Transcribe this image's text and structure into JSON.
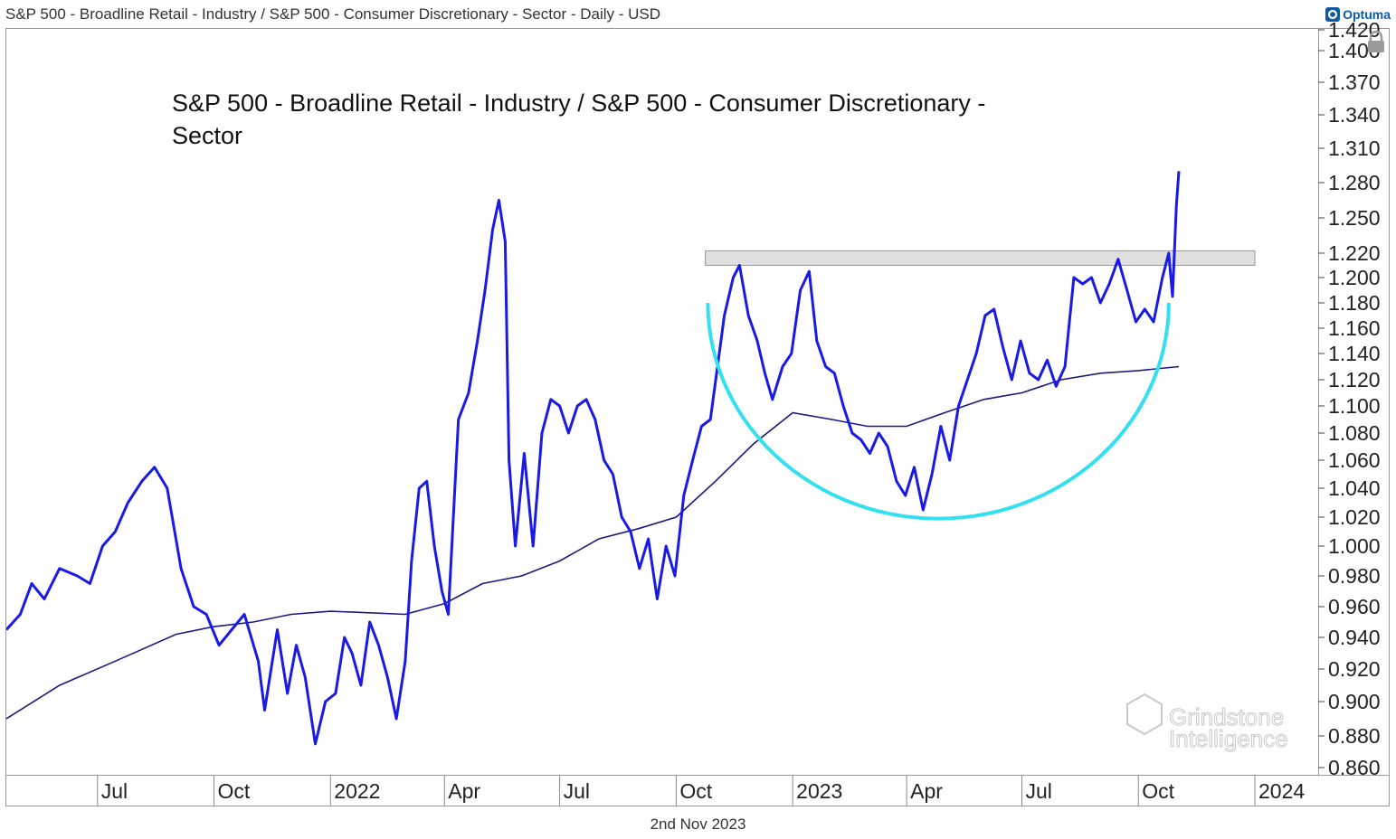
{
  "header": {
    "symbol_text": "S&P 500 - Broadline Retail - Industry / S&P 500 - Consumer Discretionary - Sector - Daily - USD",
    "logo_text": "Optuma",
    "lock_icon": "lock-icon"
  },
  "footer": {
    "date": "2nd Nov 2023"
  },
  "watermark": {
    "line1": "Grindstone",
    "line2": "Intelligence"
  },
  "colors": {
    "price_line": "#1a1ae6",
    "ma_line": "#1a1a80",
    "resistance_zone": "#d9d9d9",
    "arc": "#33e0f0",
    "logo": "#0d5aa7"
  },
  "chart_data": {
    "type": "line",
    "title_lines": [
      "S&P 500 - Broadline Retail - Industry / S&P 500 - Consumer Discretionary -",
      "Sector"
    ],
    "ylim": [
      0.86,
      1.42
    ],
    "y_ticks": [
      1.42,
      1.4,
      1.37,
      1.34,
      1.31,
      1.28,
      1.25,
      1.22,
      1.2,
      1.18,
      1.16,
      1.14,
      1.12,
      1.1,
      1.08,
      1.06,
      1.04,
      1.02,
      1.0,
      0.98,
      0.96,
      0.94,
      0.92,
      0.9,
      0.88,
      0.86
    ],
    "y_tick_labels": [
      "1.420",
      "1.400",
      "1.370",
      "1.340",
      "1.310",
      "1.280",
      "1.250",
      "1.220",
      "1.200",
      "1.180",
      "1.160",
      "1.140",
      "1.120",
      "1.100",
      "1.080",
      "1.060",
      "1.040",
      "1.020",
      "1.000",
      "0.980",
      "0.960",
      "0.940",
      "0.920",
      "0.900",
      "0.880",
      "0.860"
    ],
    "xlim": [
      "2021-04-20",
      "2024-02-20"
    ],
    "x_ticks": [
      {
        "date": "2021-07-01",
        "label": "Jul"
      },
      {
        "date": "2021-10-01",
        "label": "Oct"
      },
      {
        "date": "2022-01-01",
        "label": "2022"
      },
      {
        "date": "2022-04-01",
        "label": "Apr"
      },
      {
        "date": "2022-07-01",
        "label": "Jul"
      },
      {
        "date": "2022-10-01",
        "label": "Oct"
      },
      {
        "date": "2023-01-01",
        "label": "2023"
      },
      {
        "date": "2023-04-01",
        "label": "Apr"
      },
      {
        "date": "2023-07-01",
        "label": "Jul"
      },
      {
        "date": "2023-10-01",
        "label": "Oct"
      },
      {
        "date": "2024-01-01",
        "label": "2024"
      }
    ],
    "series": [
      {
        "name": "Ratio (daily close)",
        "style": "price",
        "points": [
          [
            "2021-04-20",
            0.945
          ],
          [
            "2021-05-01",
            0.955
          ],
          [
            "2021-05-10",
            0.975
          ],
          [
            "2021-05-20",
            0.965
          ],
          [
            "2021-06-01",
            0.985
          ],
          [
            "2021-06-15",
            0.98
          ],
          [
            "2021-06-25",
            0.975
          ],
          [
            "2021-07-05",
            1.0
          ],
          [
            "2021-07-15",
            1.01
          ],
          [
            "2021-07-25",
            1.03
          ],
          [
            "2021-08-05",
            1.045
          ],
          [
            "2021-08-15",
            1.055
          ],
          [
            "2021-08-25",
            1.04
          ],
          [
            "2021-09-05",
            0.985
          ],
          [
            "2021-09-15",
            0.96
          ],
          [
            "2021-09-25",
            0.955
          ],
          [
            "2021-10-05",
            0.935
          ],
          [
            "2021-10-15",
            0.945
          ],
          [
            "2021-10-25",
            0.955
          ],
          [
            "2021-11-05",
            0.925
          ],
          [
            "2021-11-10",
            0.895
          ],
          [
            "2021-11-20",
            0.945
          ],
          [
            "2021-11-28",
            0.905
          ],
          [
            "2021-12-05",
            0.935
          ],
          [
            "2021-12-12",
            0.915
          ],
          [
            "2021-12-20",
            0.875
          ],
          [
            "2021-12-28",
            0.9
          ],
          [
            "2022-01-05",
            0.905
          ],
          [
            "2022-01-12",
            0.94
          ],
          [
            "2022-01-18",
            0.93
          ],
          [
            "2022-01-25",
            0.91
          ],
          [
            "2022-02-01",
            0.95
          ],
          [
            "2022-02-08",
            0.935
          ],
          [
            "2022-02-15",
            0.915
          ],
          [
            "2022-02-22",
            0.89
          ],
          [
            "2022-03-01",
            0.925
          ],
          [
            "2022-03-06",
            0.99
          ],
          [
            "2022-03-12",
            1.04
          ],
          [
            "2022-03-18",
            1.045
          ],
          [
            "2022-03-24",
            1.0
          ],
          [
            "2022-03-30",
            0.97
          ],
          [
            "2022-04-04",
            0.955
          ],
          [
            "2022-04-12",
            1.09
          ],
          [
            "2022-04-20",
            1.11
          ],
          [
            "2022-04-27",
            1.15
          ],
          [
            "2022-05-03",
            1.19
          ],
          [
            "2022-05-09",
            1.24
          ],
          [
            "2022-05-14",
            1.265
          ],
          [
            "2022-05-19",
            1.23
          ],
          [
            "2022-05-22",
            1.06
          ],
          [
            "2022-05-27",
            1.0
          ],
          [
            "2022-06-03",
            1.065
          ],
          [
            "2022-06-10",
            1.0
          ],
          [
            "2022-06-17",
            1.08
          ],
          [
            "2022-06-24",
            1.105
          ],
          [
            "2022-07-01",
            1.1
          ],
          [
            "2022-07-08",
            1.08
          ],
          [
            "2022-07-15",
            1.1
          ],
          [
            "2022-07-22",
            1.105
          ],
          [
            "2022-07-29",
            1.09
          ],
          [
            "2022-08-05",
            1.06
          ],
          [
            "2022-08-12",
            1.05
          ],
          [
            "2022-08-19",
            1.02
          ],
          [
            "2022-08-26",
            1.01
          ],
          [
            "2022-09-02",
            0.985
          ],
          [
            "2022-09-09",
            1.005
          ],
          [
            "2022-09-16",
            0.965
          ],
          [
            "2022-09-23",
            1.0
          ],
          [
            "2022-09-30",
            0.98
          ],
          [
            "2022-10-07",
            1.035
          ],
          [
            "2022-10-14",
            1.06
          ],
          [
            "2022-10-21",
            1.085
          ],
          [
            "2022-10-28",
            1.09
          ],
          [
            "2022-11-04",
            1.14
          ],
          [
            "2022-11-08",
            1.17
          ],
          [
            "2022-11-15",
            1.2
          ],
          [
            "2022-11-20",
            1.21
          ],
          [
            "2022-11-27",
            1.17
          ],
          [
            "2022-12-04",
            1.15
          ],
          [
            "2022-12-10",
            1.125
          ],
          [
            "2022-12-16",
            1.105
          ],
          [
            "2022-12-24",
            1.13
          ],
          [
            "2022-12-31",
            1.14
          ],
          [
            "2023-01-07",
            1.19
          ],
          [
            "2023-01-14",
            1.205
          ],
          [
            "2023-01-20",
            1.15
          ],
          [
            "2023-01-27",
            1.13
          ],
          [
            "2023-02-03",
            1.125
          ],
          [
            "2023-02-10",
            1.1
          ],
          [
            "2023-02-17",
            1.08
          ],
          [
            "2023-02-24",
            1.075
          ],
          [
            "2023-03-03",
            1.065
          ],
          [
            "2023-03-10",
            1.08
          ],
          [
            "2023-03-17",
            1.07
          ],
          [
            "2023-03-24",
            1.045
          ],
          [
            "2023-03-31",
            1.035
          ],
          [
            "2023-04-07",
            1.055
          ],
          [
            "2023-04-14",
            1.025
          ],
          [
            "2023-04-21",
            1.05
          ],
          [
            "2023-04-28",
            1.085
          ],
          [
            "2023-05-05",
            1.06
          ],
          [
            "2023-05-12",
            1.1
          ],
          [
            "2023-05-19",
            1.12
          ],
          [
            "2023-05-26",
            1.14
          ],
          [
            "2023-06-02",
            1.17
          ],
          [
            "2023-06-09",
            1.175
          ],
          [
            "2023-06-16",
            1.145
          ],
          [
            "2023-06-23",
            1.12
          ],
          [
            "2023-06-30",
            1.15
          ],
          [
            "2023-07-07",
            1.125
          ],
          [
            "2023-07-14",
            1.12
          ],
          [
            "2023-07-21",
            1.135
          ],
          [
            "2023-07-28",
            1.115
          ],
          [
            "2023-08-04",
            1.13
          ],
          [
            "2023-08-11",
            1.2
          ],
          [
            "2023-08-18",
            1.195
          ],
          [
            "2023-08-25",
            1.2
          ],
          [
            "2023-09-01",
            1.18
          ],
          [
            "2023-09-08",
            1.195
          ],
          [
            "2023-09-15",
            1.215
          ],
          [
            "2023-09-22",
            1.19
          ],
          [
            "2023-09-29",
            1.165
          ],
          [
            "2023-10-06",
            1.175
          ],
          [
            "2023-10-13",
            1.165
          ],
          [
            "2023-10-20",
            1.2
          ],
          [
            "2023-10-25",
            1.22
          ],
          [
            "2023-10-28",
            1.185
          ],
          [
            "2023-10-31",
            1.26
          ],
          [
            "2023-11-02",
            1.29
          ]
        ]
      },
      {
        "name": "Moving average",
        "style": "ma",
        "points": [
          [
            "2021-04-20",
            0.89
          ],
          [
            "2021-06-01",
            0.91
          ],
          [
            "2021-07-15",
            0.925
          ],
          [
            "2021-09-01",
            0.942
          ],
          [
            "2021-10-01",
            0.947
          ],
          [
            "2021-11-01",
            0.95
          ],
          [
            "2021-12-01",
            0.955
          ],
          [
            "2022-01-01",
            0.957
          ],
          [
            "2022-02-01",
            0.956
          ],
          [
            "2022-03-01",
            0.955
          ],
          [
            "2022-04-01",
            0.962
          ],
          [
            "2022-05-01",
            0.975
          ],
          [
            "2022-06-01",
            0.98
          ],
          [
            "2022-07-01",
            0.99
          ],
          [
            "2022-08-01",
            1.005
          ],
          [
            "2022-09-01",
            1.012
          ],
          [
            "2022-10-01",
            1.02
          ],
          [
            "2022-11-01",
            1.045
          ],
          [
            "2022-12-01",
            1.072
          ],
          [
            "2023-01-01",
            1.095
          ],
          [
            "2023-02-01",
            1.09
          ],
          [
            "2023-03-01",
            1.085
          ],
          [
            "2023-04-01",
            1.085
          ],
          [
            "2023-05-01",
            1.095
          ],
          [
            "2023-06-01",
            1.105
          ],
          [
            "2023-07-01",
            1.11
          ],
          [
            "2023-08-01",
            1.12
          ],
          [
            "2023-09-01",
            1.125
          ],
          [
            "2023-10-01",
            1.127
          ],
          [
            "2023-11-02",
            1.13
          ]
        ]
      }
    ],
    "annotations": {
      "resistance_zone": {
        "x0": "2022-10-24",
        "x1": "2024-01-01",
        "y_low": 1.21,
        "y_high": 1.222
      },
      "rounding_bottom_arc": {
        "x0": "2022-10-26",
        "x1": "2023-10-25",
        "y_top": 1.18,
        "y_bottom": 1.019
      }
    }
  }
}
